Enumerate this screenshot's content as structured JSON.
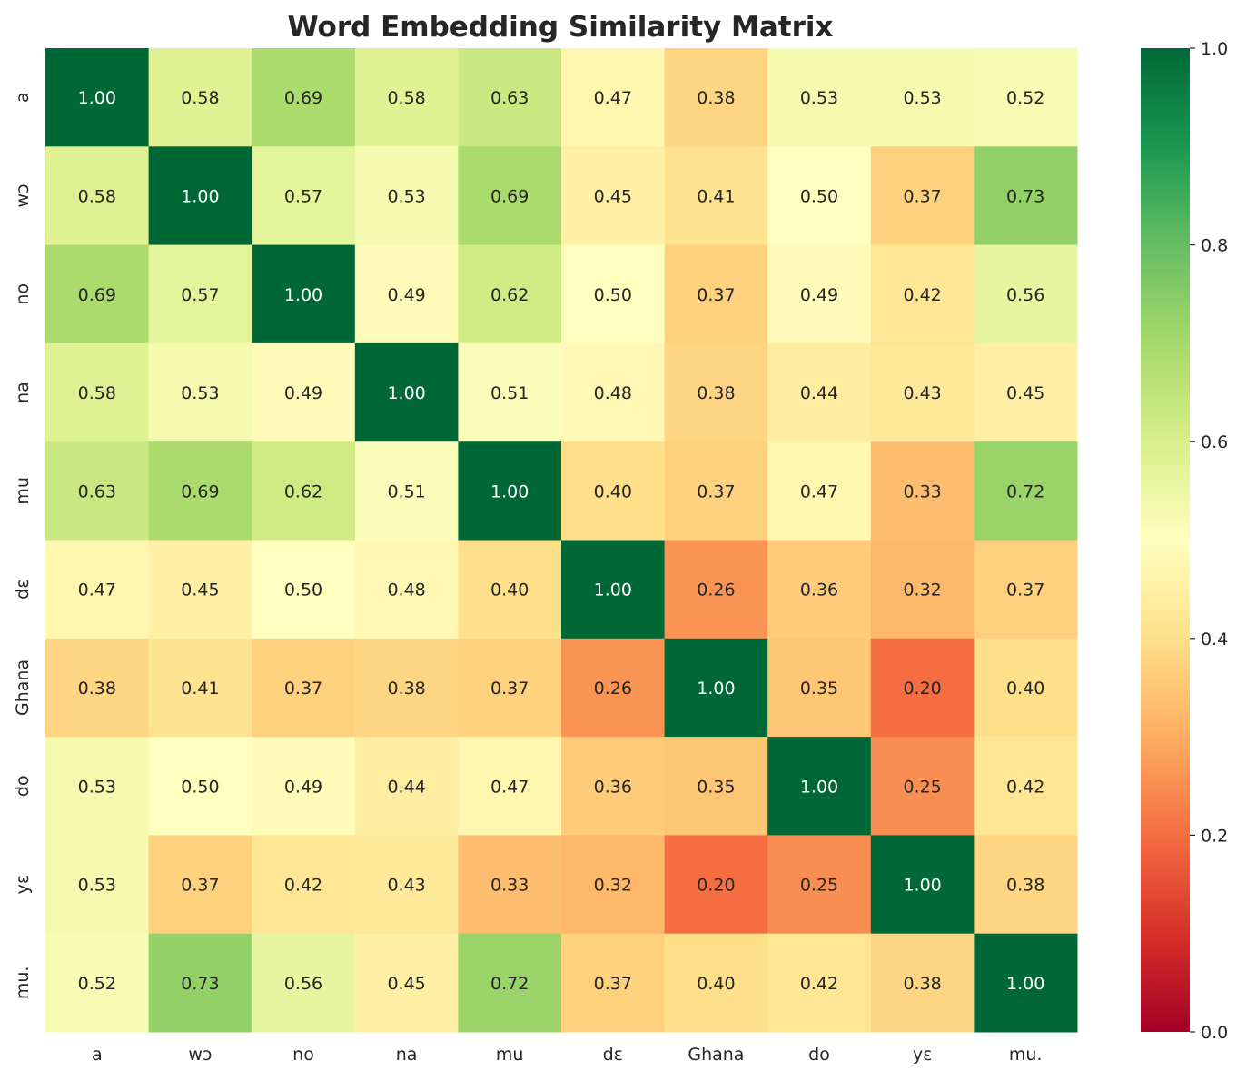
{
  "chart_data": {
    "type": "heatmap",
    "title": "Word Embedding Similarity Matrix",
    "xlabel": "",
    "ylabel": "",
    "x_categories": [
      "a",
      "wɔ",
      "no",
      "na",
      "mu",
      "dɛ",
      "Ghana",
      "do",
      "yɛ",
      "mu."
    ],
    "y_categories": [
      "a",
      "wɔ",
      "no",
      "na",
      "mu",
      "dɛ",
      "Ghana",
      "do",
      "yɛ",
      "mu."
    ],
    "values": [
      [
        1.0,
        0.58,
        0.69,
        0.58,
        0.63,
        0.47,
        0.38,
        0.53,
        0.53,
        0.52
      ],
      [
        0.58,
        1.0,
        0.57,
        0.53,
        0.69,
        0.45,
        0.41,
        0.5,
        0.37,
        0.73
      ],
      [
        0.69,
        0.57,
        1.0,
        0.49,
        0.62,
        0.5,
        0.37,
        0.49,
        0.42,
        0.56
      ],
      [
        0.58,
        0.53,
        0.49,
        1.0,
        0.51,
        0.48,
        0.38,
        0.44,
        0.43,
        0.45
      ],
      [
        0.63,
        0.69,
        0.62,
        0.51,
        1.0,
        0.4,
        0.37,
        0.47,
        0.33,
        0.72
      ],
      [
        0.47,
        0.45,
        0.5,
        0.48,
        0.4,
        1.0,
        0.26,
        0.36,
        0.32,
        0.37
      ],
      [
        0.38,
        0.41,
        0.37,
        0.38,
        0.37,
        0.26,
        1.0,
        0.35,
        0.2,
        0.4
      ],
      [
        0.53,
        0.5,
        0.49,
        0.44,
        0.47,
        0.36,
        0.35,
        1.0,
        0.25,
        0.42
      ],
      [
        0.53,
        0.37,
        0.42,
        0.43,
        0.33,
        0.32,
        0.2,
        0.25,
        1.0,
        0.38
      ],
      [
        0.52,
        0.73,
        0.56,
        0.45,
        0.72,
        0.37,
        0.4,
        0.42,
        0.38,
        1.0
      ]
    ],
    "value_format": "0.00",
    "colormap": "RdYlGn",
    "vmin": 0.0,
    "vmax": 1.0,
    "colorbar_ticks": [
      "0.0",
      "0.2",
      "0.4",
      "0.6",
      "0.8",
      "1.0"
    ],
    "colors": {
      "background": "#ffffff",
      "text_dark": "#262626",
      "text_light": "#ffffff"
    }
  }
}
